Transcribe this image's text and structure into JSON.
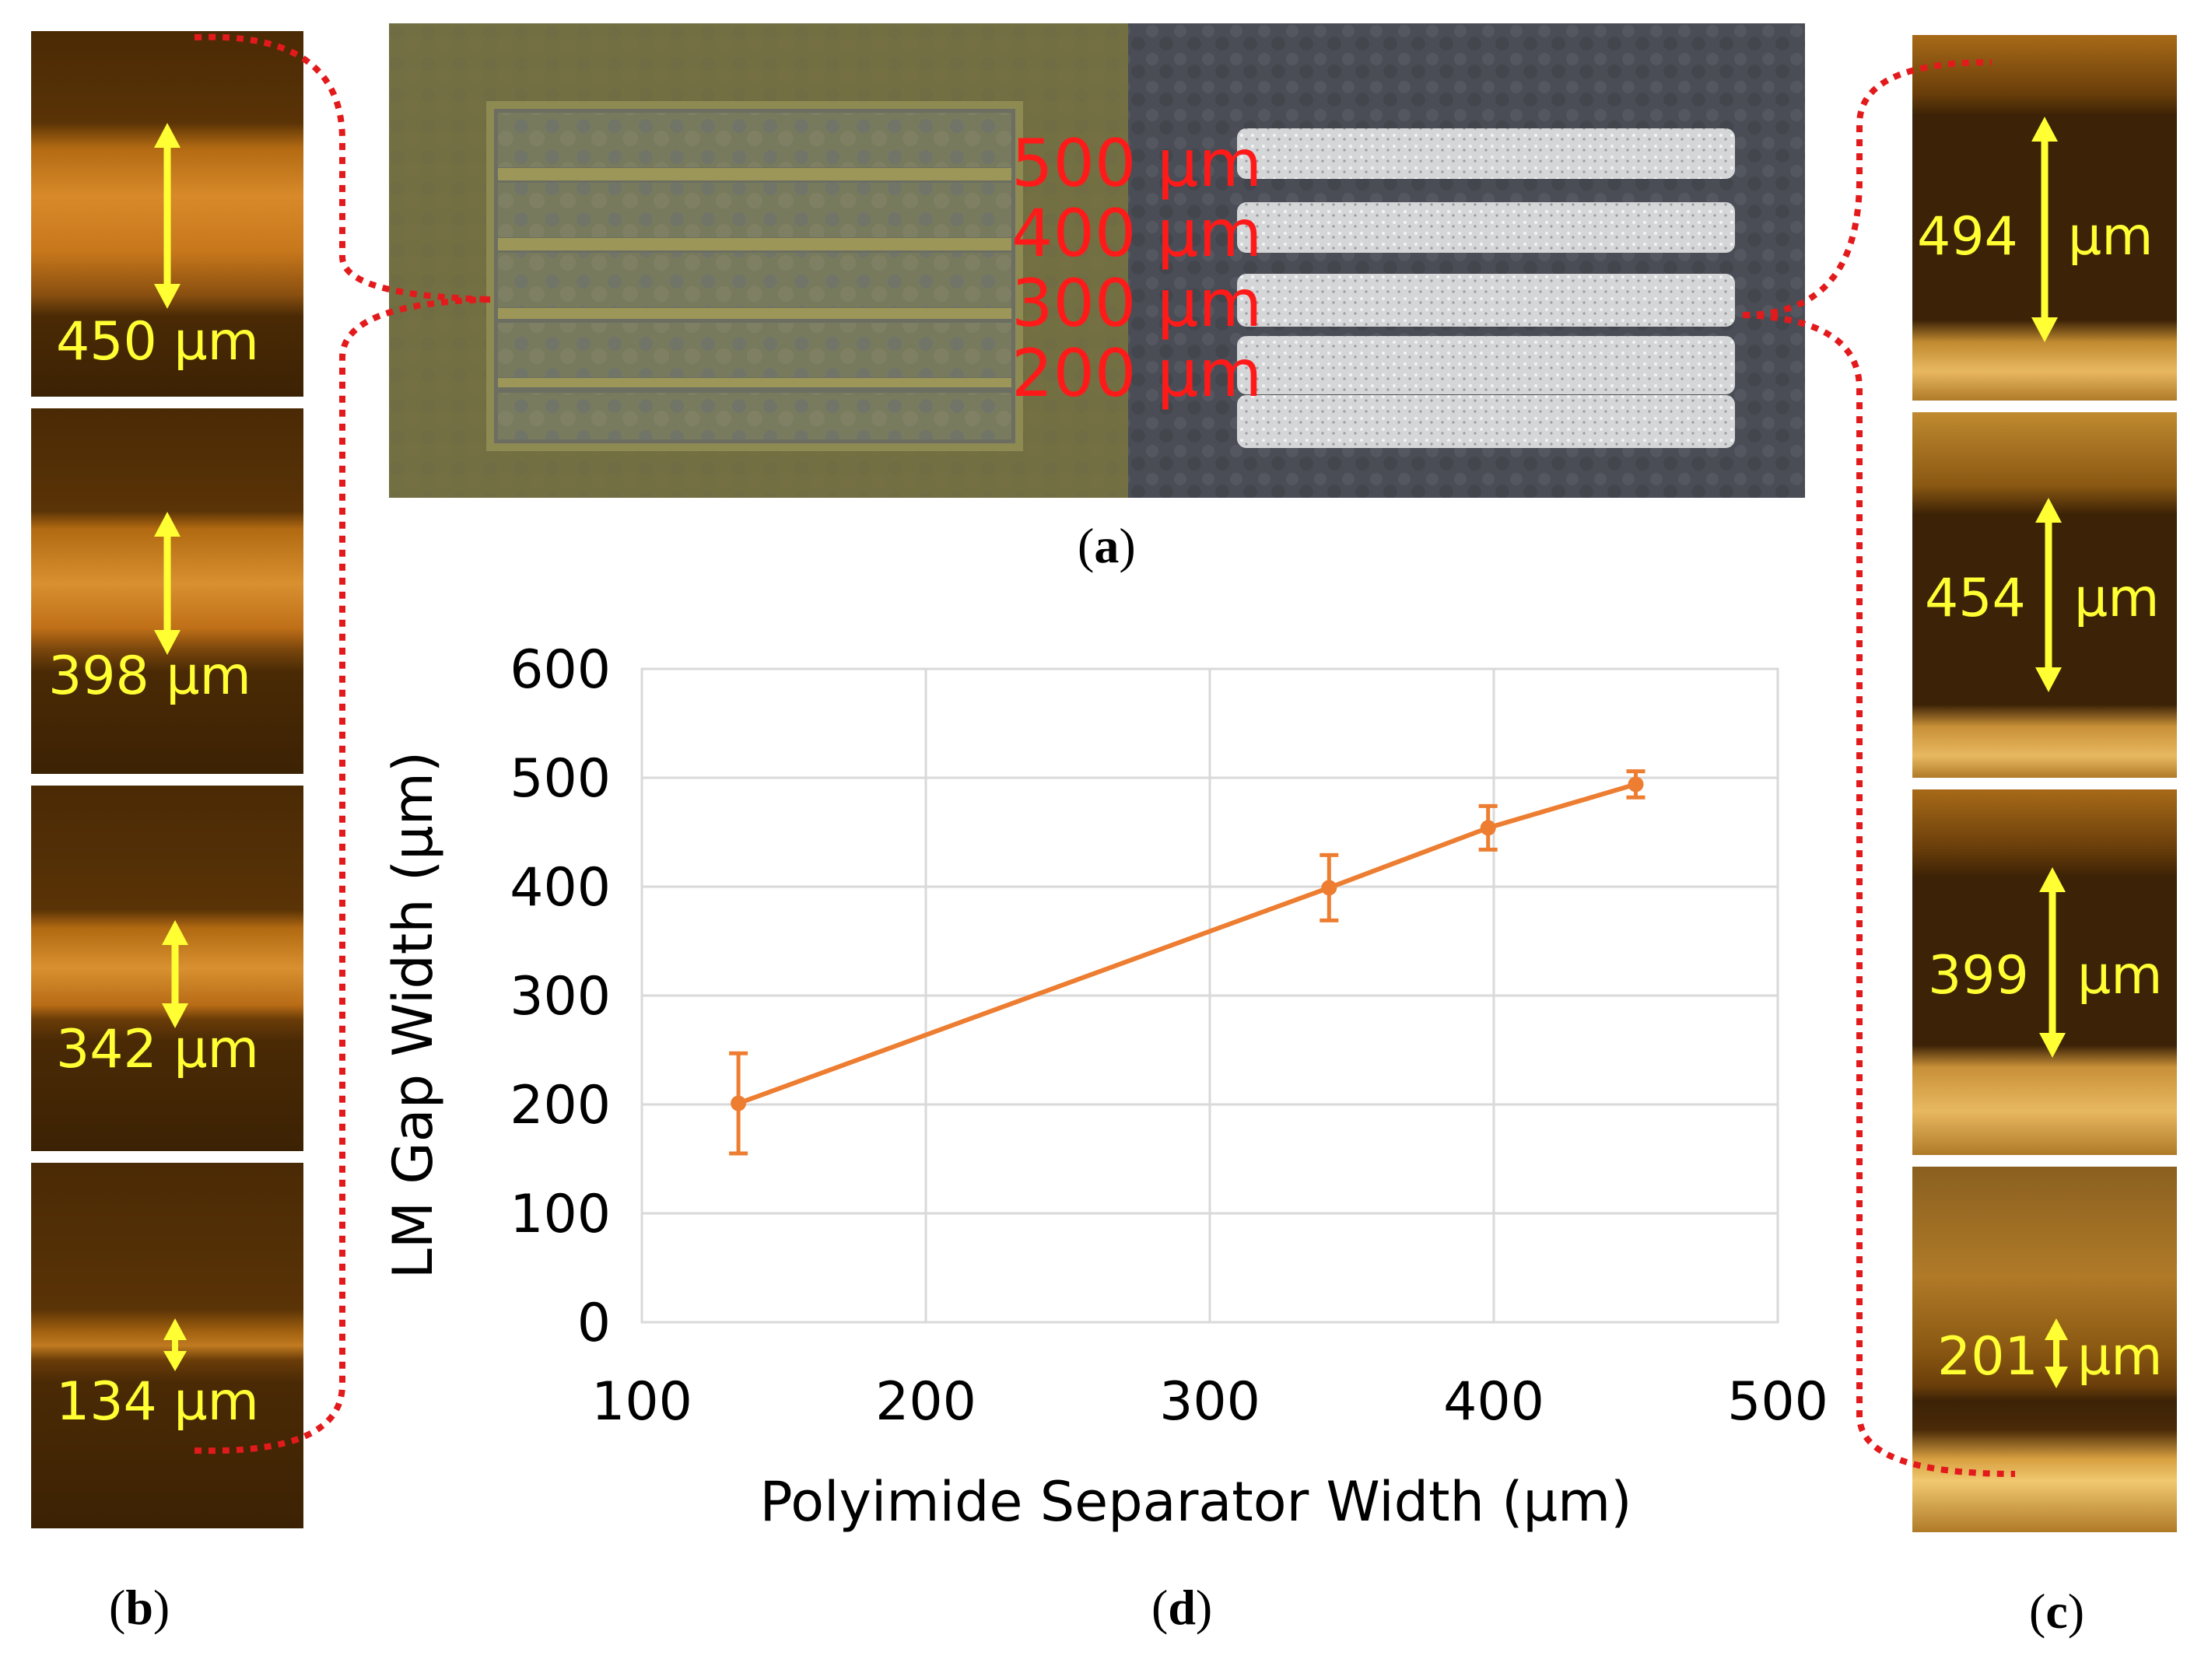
{
  "captions": {
    "a": "a",
    "b": "b",
    "c": "c",
    "d": "d"
  },
  "photo": {
    "labels": [
      "500 µm",
      "400 µm",
      "300 µm",
      "200 µm"
    ]
  },
  "panel_b": {
    "measurements": [
      "450 µm",
      "398 µm",
      "342 µm",
      "134 µm"
    ]
  },
  "panel_c": {
    "measurements": [
      {
        "num": "494",
        "unit": "µm"
      },
      {
        "num": "454",
        "unit": "µm"
      },
      {
        "num": "399",
        "unit": "µm"
      },
      {
        "num": "201",
        "unit": "µm"
      }
    ]
  },
  "colors": {
    "series": "#ed7d31",
    "measure": "#ffff33",
    "photo_label": "#ff1a1a",
    "callout": "#e31a1c"
  },
  "chart_data": {
    "type": "line",
    "title": "",
    "xlabel": "Polyimide Separator Width (µm)",
    "ylabel": "LM Gap Width (µm)",
    "xlim": [
      100,
      500
    ],
    "ylim": [
      0,
      600
    ],
    "xticks": [
      100,
      200,
      300,
      400,
      500
    ],
    "yticks": [
      0,
      100,
      200,
      300,
      400,
      500,
      600
    ],
    "grid": true,
    "series": [
      {
        "x": [
          134,
          342,
          398,
          450
        ],
        "y": [
          201,
          399,
          454,
          494
        ],
        "yerr": [
          46,
          30,
          20,
          12
        ]
      }
    ]
  }
}
